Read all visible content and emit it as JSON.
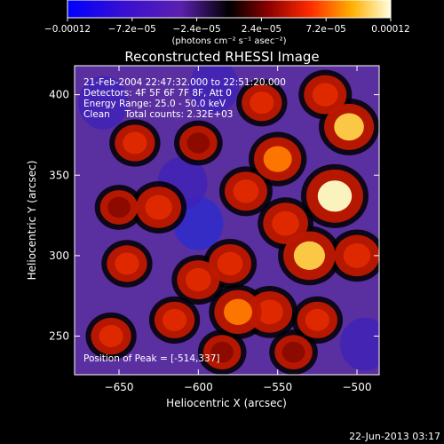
{
  "chart_data": {
    "type": "heatmap",
    "title": "Reconstructed RHESSI Image",
    "xlabel": "Heliocentric X (arcsec)",
    "ylabel": "Heliocentric Y (arcsec)",
    "xlim": [
      -678,
      -486
    ],
    "ylim": [
      226,
      418
    ],
    "x_ticks": [
      -650,
      -600,
      -550,
      -500
    ],
    "x_tick_labels": [
      "−650",
      "−600",
      "−550",
      "−500"
    ],
    "y_ticks": [
      250,
      300,
      350,
      400
    ],
    "y_tick_labels": [
      "250",
      "300",
      "350",
      "400"
    ],
    "colorbar": {
      "min": -0.00012,
      "max": 0.00012,
      "tick_labels": [
        "−0.00012",
        "−7.2e−05",
        "−2.4e−05",
        "2.4e−05",
        "7.2e−05",
        "0.00012"
      ],
      "units_label": "(photons cm⁻² s⁻¹ asec⁻²)"
    },
    "annotations": [
      "21-Feb-2004 22:47:32.000 to 22:51:20.000",
      "Detectors: 4F 5F 6F 7F 8F, Att 0",
      "Energy Range: 25.0 - 50.0 keV",
      "Clean     Total counts: 2.32E+03"
    ],
    "peak_label": "Position of Peak = [-514,337]",
    "grid": false,
    "blobs": [
      {
        "x": -514,
        "y": 337,
        "value": 0.00012
      },
      {
        "x": -505,
        "y": 380,
        "value": 9e-05
      },
      {
        "x": -530,
        "y": 300,
        "value": 0.0001
      },
      {
        "x": -500,
        "y": 300,
        "value": 7e-05
      },
      {
        "x": -550,
        "y": 360,
        "value": 8e-05
      },
      {
        "x": -545,
        "y": 320,
        "value": 7e-05
      },
      {
        "x": -560,
        "y": 395,
        "value": 5e-05
      },
      {
        "x": -520,
        "y": 400,
        "value": 6e-05
      },
      {
        "x": -570,
        "y": 340,
        "value": 6e-05
      },
      {
        "x": -575,
        "y": 265,
        "value": 8e-05
      },
      {
        "x": -600,
        "y": 285,
        "value": 6e-05
      },
      {
        "x": -615,
        "y": 260,
        "value": 5e-05
      },
      {
        "x": -555,
        "y": 265,
        "value": 7e-05
      },
      {
        "x": -525,
        "y": 260,
        "value": 5e-05
      },
      {
        "x": -580,
        "y": 295,
        "value": 6e-05
      },
      {
        "x": -645,
        "y": 295,
        "value": 5e-05
      },
      {
        "x": -625,
        "y": 330,
        "value": 7e-05
      },
      {
        "x": -650,
        "y": 330,
        "value": 4e-05
      },
      {
        "x": -640,
        "y": 370,
        "value": 5e-05
      },
      {
        "x": -600,
        "y": 370,
        "value": 4e-05
      },
      {
        "x": -655,
        "y": 250,
        "value": 5e-05
      },
      {
        "x": -585,
        "y": 240,
        "value": 4e-05
      },
      {
        "x": -540,
        "y": 240,
        "value": 4e-05
      },
      {
        "x": -600,
        "y": 320,
        "value": -8e-05
      },
      {
        "x": -610,
        "y": 345,
        "value": -5e-05
      },
      {
        "x": -660,
        "y": 395,
        "value": -3e-05
      },
      {
        "x": -495,
        "y": 245,
        "value": -4e-05
      },
      {
        "x": -590,
        "y": 405,
        "value": -3e-05
      }
    ]
  },
  "footer": {
    "date_stamp": "22-Jun-2013 03:17"
  },
  "colors": {
    "background": "#000000",
    "foreground": "#ffffff"
  }
}
